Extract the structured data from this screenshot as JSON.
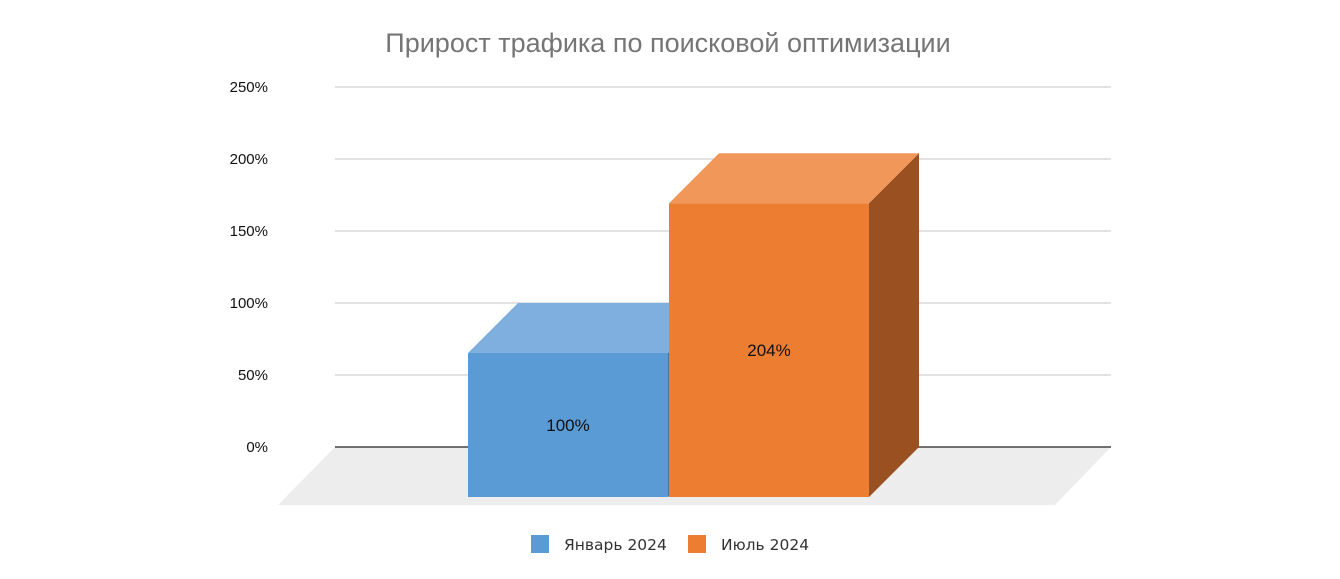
{
  "chart_data": {
    "type": "bar",
    "style": "3d-clustered-column",
    "title": "Прирост трафика по поисковой оптимизации",
    "categories": [
      ""
    ],
    "series": [
      {
        "name": "Январь 2024",
        "values": [
          100
        ],
        "labels": [
          "100%"
        ],
        "color": "#5b9bd5",
        "top_color": "#7eafde",
        "side_color": "#44739f"
      },
      {
        "name": "Июль 2024",
        "values": [
          204
        ],
        "labels": [
          "204%"
        ],
        "color": "#ed7d31",
        "top_color": "#f1975a",
        "side_color": "#9a5020"
      }
    ],
    "y_ticks": [
      "0%",
      "50%",
      "100%",
      "150%",
      "200%",
      "250%"
    ],
    "y_tick_values": [
      0,
      50,
      100,
      150,
      200,
      250
    ],
    "ylim": [
      0,
      250
    ],
    "xlabel": "",
    "ylabel": "",
    "grid": true,
    "legend_position": "bottom"
  }
}
